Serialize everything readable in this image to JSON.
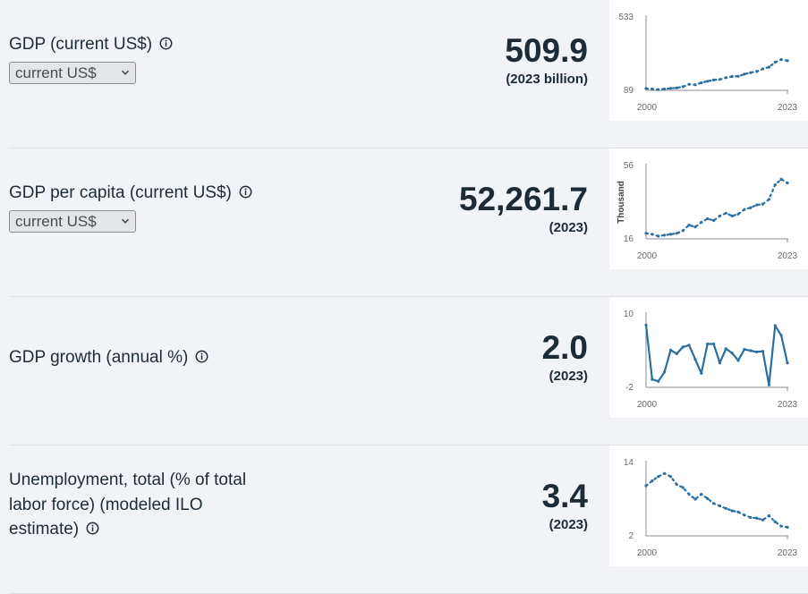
{
  "indicators": [
    {
      "title": "GDP (current US$)",
      "selector_value": "current US$",
      "value": "509.9",
      "sub": "(2023 billion)",
      "chart_data": {
        "type": "line",
        "x": [
          2000,
          2001,
          2002,
          2003,
          2004,
          2005,
          2006,
          2007,
          2008,
          2009,
          2010,
          2011,
          2012,
          2013,
          2014,
          2015,
          2016,
          2017,
          2018,
          2019,
          2020,
          2021,
          2022,
          2023
        ],
        "series": [
          {
            "values": [
              100,
              97,
              94,
              97,
              101,
              104,
              111,
              126,
              123,
              135,
              144,
              152,
              155,
              166,
              173,
              174,
              187,
              196,
              203,
              219,
              230,
              259,
              276,
              268
            ]
          }
        ],
        "y_ticks": [
          "533",
          "89"
        ],
        "x_ticks": [
          "2000",
          "2023"
        ],
        "ylim": [
          89,
          533
        ],
        "ylabel": "",
        "color": "#2a6fa0"
      }
    },
    {
      "title": "GDP per capita (current US$)",
      "selector_value": "current US$",
      "value": "52,261.7",
      "sub": "(2023)",
      "chart_data": {
        "type": "line",
        "x": [
          2000,
          2001,
          2002,
          2003,
          2004,
          2005,
          2006,
          2007,
          2008,
          2009,
          2010,
          2011,
          2012,
          2013,
          2014,
          2015,
          2016,
          2017,
          2018,
          2019,
          2020,
          2021,
          2022,
          2023
        ],
        "series": [
          {
            "values": [
              19,
              18.5,
              17.5,
              18,
              18.5,
              19,
              20.5,
              23.5,
              22.5,
              25,
              27,
              26,
              28.5,
              30,
              28.5,
              29.5,
              32,
              33,
              34.5,
              35,
              37.5,
              45.5,
              48.5,
              46.5
            ]
          }
        ],
        "y_ticks": [
          "56",
          "16"
        ],
        "x_ticks": [
          "2000",
          "2023"
        ],
        "ylim": [
          16,
          56
        ],
        "ylabel": "Thousand",
        "color": "#2a6fa0"
      }
    },
    {
      "title": "GDP growth (annual %)",
      "value": "2.0",
      "sub": "(2023)",
      "chart_data": {
        "type": "line",
        "x": [
          2000,
          2001,
          2002,
          2003,
          2004,
          2005,
          2006,
          2007,
          2008,
          2009,
          2010,
          2011,
          2012,
          2013,
          2014,
          2015,
          2016,
          2017,
          2018,
          2019,
          2020,
          2021,
          2022,
          2023
        ],
        "series": [
          {
            "values": [
              8.2,
              -0.7,
              -1.0,
              0.5,
              4.1,
              3.5,
              4.6,
              4.9,
              2.6,
              0.3,
              5.1,
              5.1,
              2.0,
              4.3,
              3.6,
              2.4,
              4.2,
              4.0,
              3.8,
              3.9,
              -1.6,
              8.1,
              6.5,
              2.0
            ]
          }
        ],
        "y_ticks": [
          "10",
          "-2"
        ],
        "x_ticks": [
          "2000",
          "2023"
        ],
        "ylim": [
          -2,
          10
        ],
        "ylabel": "",
        "color": "#2a6fa0"
      }
    },
    {
      "title": "Unemployment, total (% of total labor force) (modeled ILO estimate)",
      "title_lines": [
        "Unemployment, total (% of total",
        "labor force) (modeled ILO",
        "estimate)"
      ],
      "value": "3.4",
      "sub": "(2023)",
      "chart_data": {
        "type": "line",
        "x": [
          2000,
          2001,
          2002,
          2003,
          2004,
          2005,
          2006,
          2007,
          2008,
          2009,
          2010,
          2011,
          2012,
          2013,
          2014,
          2015,
          2016,
          2017,
          2018,
          2019,
          2020,
          2021,
          2022,
          2023
        ],
        "series": [
          {
            "values": [
              10.2,
              11.0,
              11.7,
              12.2,
              11.7,
              10.4,
              9.9,
              8.8,
              8.0,
              8.8,
              8.1,
              7.3,
              6.9,
              6.5,
              6.1,
              5.9,
              5.4,
              5.0,
              4.9,
              4.6,
              5.3,
              4.3,
              3.6,
              3.4
            ]
          }
        ],
        "y_ticks": [
          "14",
          "2"
        ],
        "x_ticks": [
          "2000",
          "2023"
        ],
        "ylim": [
          2,
          14
        ],
        "ylabel": "",
        "color": "#2a6fa0"
      }
    }
  ]
}
